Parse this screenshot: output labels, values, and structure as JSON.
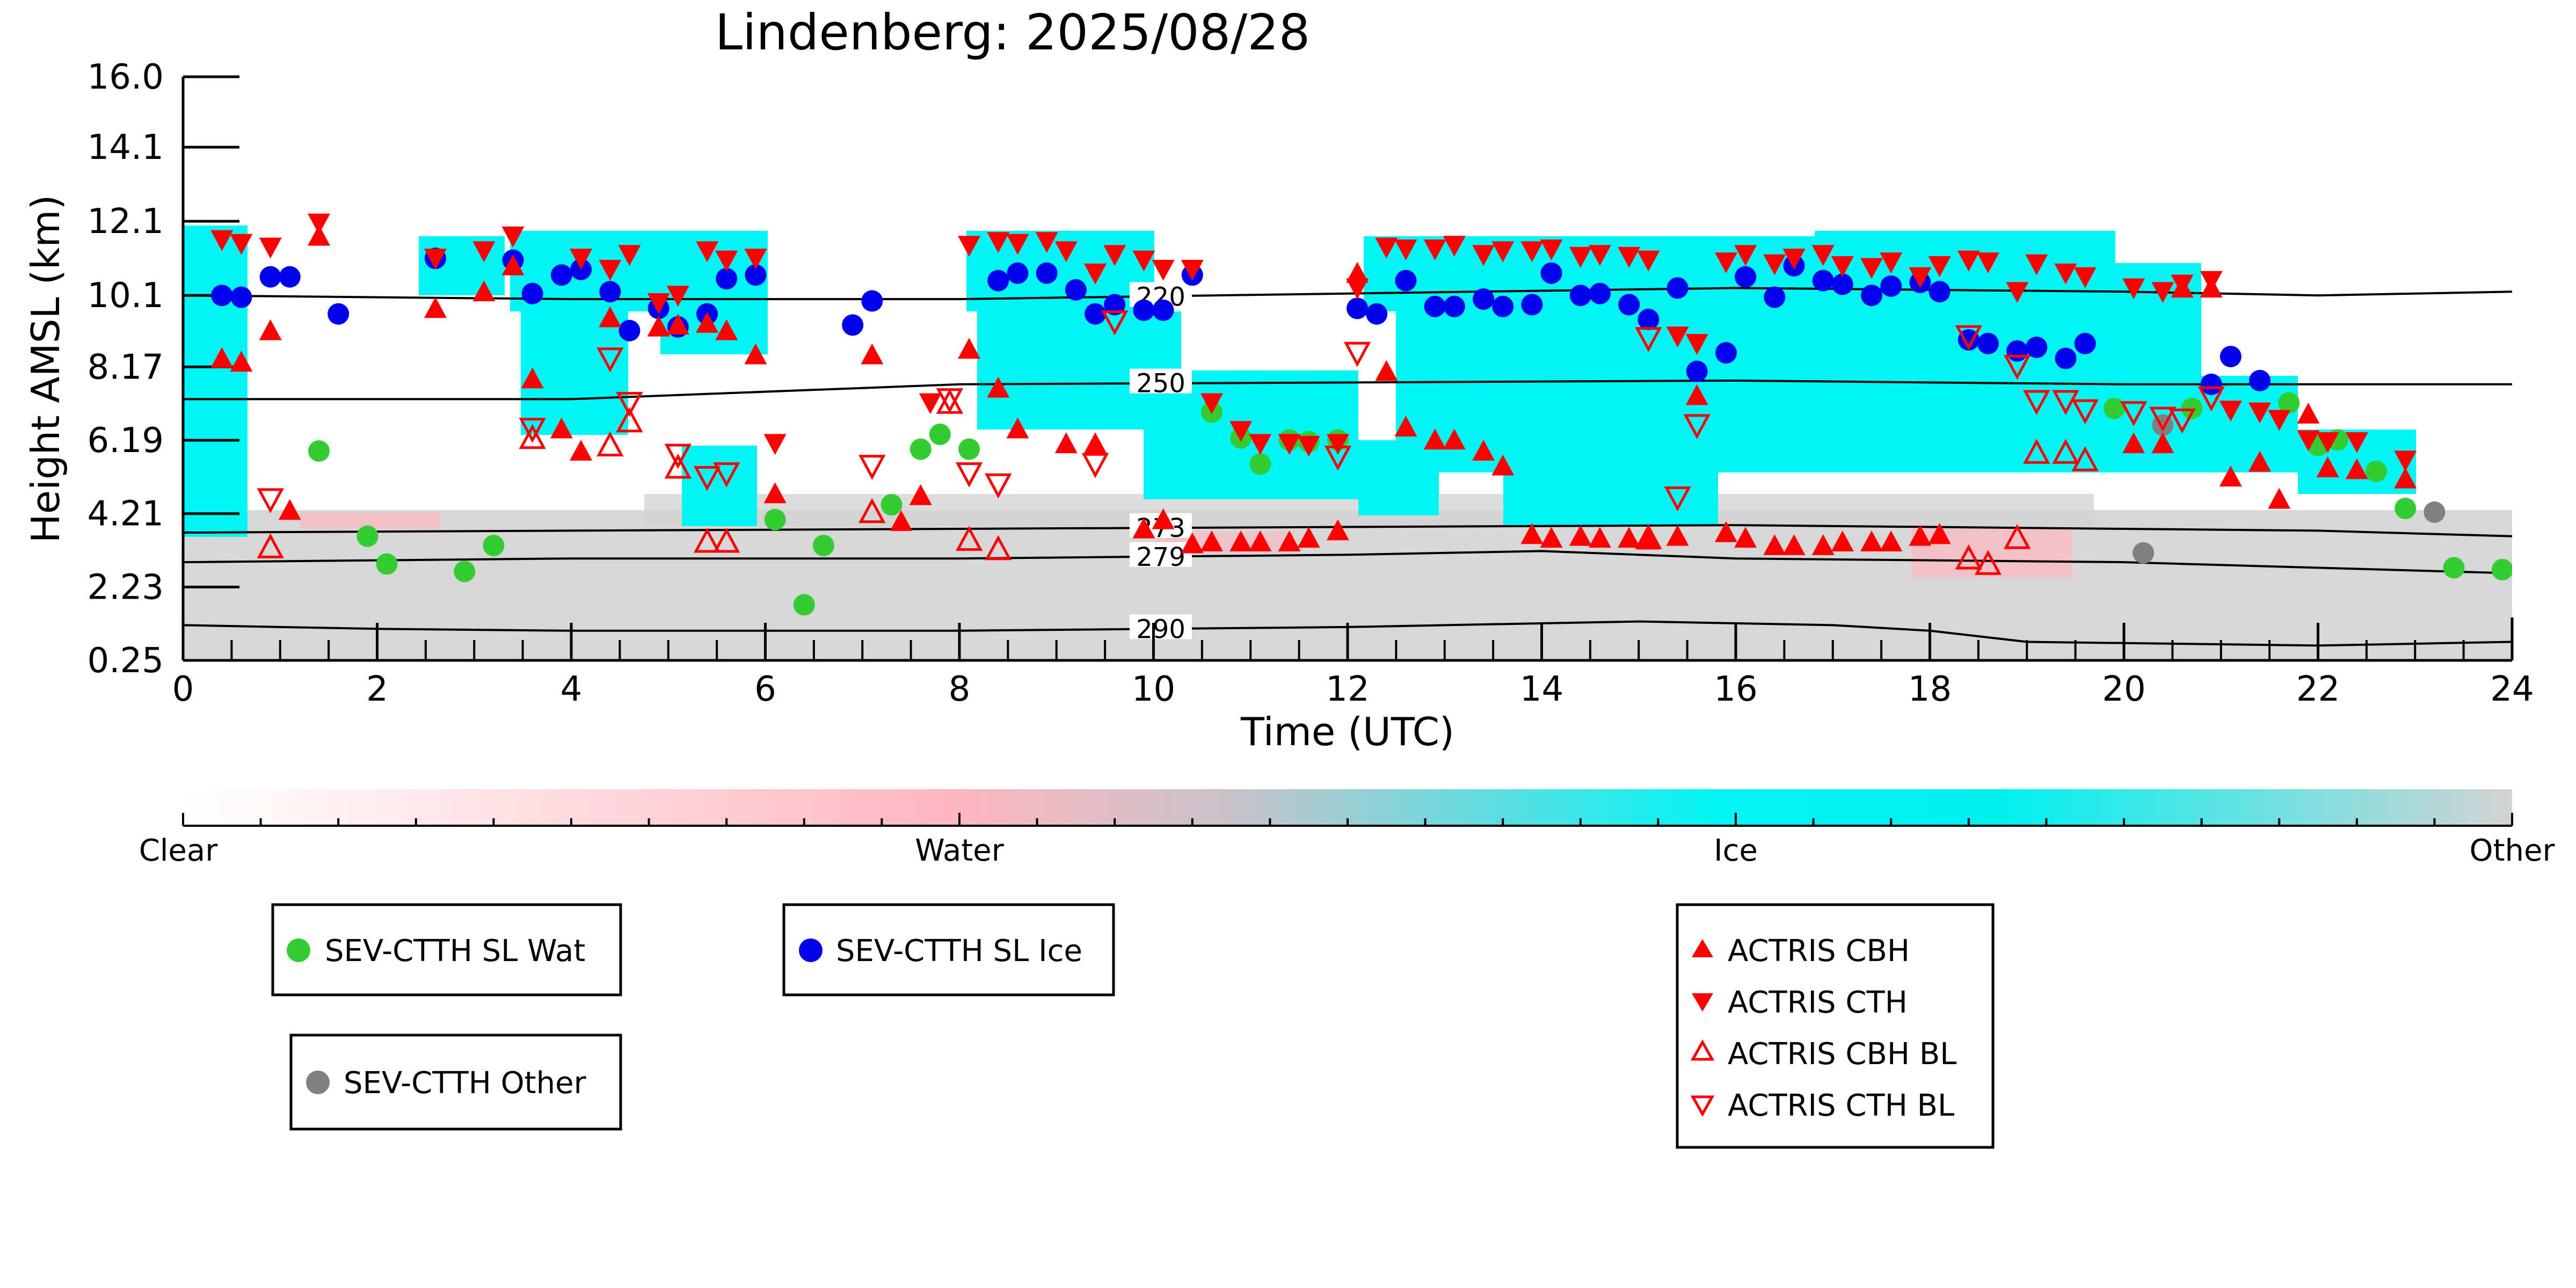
{
  "chart_data": {
    "type": "scatter",
    "title": "Lindenberg: 2025/08/28",
    "xlabel": "Time (UTC)",
    "ylabel": "Height AMSL (km)",
    "xlim": [
      0,
      24
    ],
    "ylim": [
      0.25,
      16.0
    ],
    "xticks": [
      0,
      2,
      4,
      6,
      8,
      10,
      12,
      14,
      16,
      18,
      20,
      22,
      24
    ],
    "yticks": [
      0.25,
      2.23,
      4.21,
      6.19,
      8.17,
      10.1,
      12.1,
      14.1,
      16.0
    ],
    "ytick_labels": [
      "0.25",
      "2.23",
      "4.21",
      "6.19",
      "8.17",
      "10.1",
      "12.1",
      "14.1",
      "16.0"
    ],
    "grid": false,
    "colorbar": {
      "categories": [
        "Clear",
        "Water",
        "Ice",
        "Other"
      ],
      "colors": [
        "#ffffff",
        "#ffb6c1",
        "#00f5f5",
        "#d3d3d3"
      ]
    },
    "contours": [
      {
        "label": "220",
        "x": [
          0,
          4,
          8,
          12,
          16,
          20,
          22,
          24
        ],
        "y": [
          10.1,
          10.0,
          10.0,
          10.15,
          10.3,
          10.2,
          10.1,
          10.2
        ]
      },
      {
        "label": "250",
        "x": [
          0,
          4,
          8,
          12,
          16,
          20,
          24
        ],
        "y": [
          7.3,
          7.3,
          7.7,
          7.75,
          7.8,
          7.7,
          7.7
        ]
      },
      {
        "label": "273",
        "x": [
          0,
          4,
          8,
          12,
          16,
          20,
          22,
          24
        ],
        "y": [
          3.7,
          3.75,
          3.8,
          3.85,
          3.9,
          3.8,
          3.75,
          3.6
        ]
      },
      {
        "label": "279",
        "x": [
          0,
          4,
          8,
          12,
          14,
          16,
          20,
          22,
          24
        ],
        "y": [
          2.9,
          3.0,
          3.0,
          3.1,
          3.2,
          3.0,
          2.9,
          2.75,
          2.6
        ]
      },
      {
        "label": "290",
        "x": [
          0,
          2,
          4,
          8,
          12,
          15,
          17,
          18,
          19,
          22,
          24
        ],
        "y": [
          1.2,
          1.1,
          1.05,
          1.05,
          1.15,
          1.3,
          1.2,
          1.05,
          0.75,
          0.65,
          0.75
        ]
      }
    ],
    "series": [
      {
        "name": "SEV-CTTH SL Wat",
        "marker": "circle",
        "color": "#33cc33",
        "x": [
          1.4,
          1.9,
          2.1,
          2.9,
          3.2,
          6.1,
          6.4,
          6.6,
          7.3,
          7.6,
          7.8,
          8.1,
          10.6,
          10.9,
          11.1,
          11.4,
          11.6,
          11.9,
          19.9,
          20.7,
          21.7,
          22.0,
          22.2,
          22.6,
          22.9,
          23.4,
          23.9
        ],
        "y": [
          5.9,
          3.6,
          2.85,
          2.65,
          3.35,
          4.05,
          1.75,
          3.35,
          4.45,
          5.95,
          6.35,
          5.95,
          6.95,
          6.25,
          5.55,
          6.2,
          6.15,
          6.2,
          7.05,
          7.05,
          7.2,
          6.05,
          6.2,
          5.35,
          4.35,
          2.75,
          2.7
        ]
      },
      {
        "name": "SEV-CTTH SL Ice",
        "marker": "circle",
        "color": "#0000ee",
        "x": [
          0.4,
          0.6,
          0.9,
          1.1,
          1.6,
          2.6,
          3.4,
          3.6,
          3.9,
          4.1,
          4.4,
          4.6,
          4.9,
          5.1,
          5.4,
          5.6,
          5.9,
          6.9,
          7.1,
          8.4,
          8.6,
          8.9,
          9.2,
          9.4,
          9.6,
          9.9,
          10.1,
          10.4,
          12.1,
          12.3,
          12.6,
          12.9,
          13.1,
          13.4,
          13.6,
          13.9,
          14.1,
          14.4,
          14.6,
          14.9,
          15.1,
          15.4,
          15.6,
          15.9,
          16.1,
          16.4,
          16.6,
          16.9,
          17.1,
          17.4,
          17.6,
          17.9,
          18.1,
          18.4,
          18.6,
          18.9,
          19.1,
          19.4,
          19.6,
          20.9,
          21.1,
          21.4
        ],
        "y": [
          10.1,
          10.05,
          10.6,
          10.6,
          9.6,
          11.1,
          11.05,
          10.15,
          10.65,
          10.8,
          10.2,
          9.15,
          9.75,
          9.25,
          9.6,
          10.55,
          10.65,
          9.3,
          9.95,
          10.5,
          10.7,
          10.7,
          10.25,
          9.6,
          9.85,
          9.7,
          9.7,
          10.65,
          9.75,
          9.6,
          10.5,
          9.8,
          9.8,
          10.0,
          9.8,
          9.85,
          10.7,
          10.1,
          10.15,
          9.85,
          9.45,
          10.3,
          8.05,
          8.55,
          10.6,
          10.05,
          10.9,
          10.5,
          10.4,
          10.1,
          10.35,
          10.45,
          10.2,
          8.9,
          8.8,
          8.6,
          8.7,
          8.4,
          8.8,
          7.7,
          8.45,
          7.8
        ]
      },
      {
        "name": "SEV-CTTH Other",
        "marker": "circle",
        "color": "#808080",
        "x": [
          20.2,
          20.4,
          23.2
        ],
        "y": [
          3.15,
          6.6,
          4.25
        ]
      },
      {
        "name": "ACTRIS CBH",
        "marker": "triangle-up",
        "color": "#ff0000",
        "filled": true,
        "x": [
          0.4,
          0.6,
          0.9,
          1.1,
          1.4,
          2.6,
          3.1,
          3.4,
          3.6,
          3.9,
          4.1,
          4.4,
          4.9,
          5.1,
          5.4,
          5.6,
          5.9,
          6.1,
          7.1,
          7.4,
          7.6,
          8.1,
          8.4,
          8.6,
          9.1,
          9.4,
          9.9,
          10.1,
          10.4,
          10.6,
          10.9,
          11.1,
          11.4,
          11.6,
          11.9,
          12.1,
          12.4,
          12.6,
          12.9,
          13.1,
          13.4,
          13.6,
          13.9,
          14.1,
          14.4,
          14.6,
          14.9,
          15.1,
          15.4,
          15.6,
          15.9,
          16.1,
          16.4,
          16.6,
          16.9,
          17.1,
          17.4,
          17.6,
          17.9,
          18.1,
          20.1,
          20.4,
          20.6,
          20.9,
          21.1,
          21.4,
          21.6,
          21.9,
          22.1,
          22.4,
          22.9
        ],
        "y": [
          8.4,
          8.3,
          9.15,
          4.3,
          11.7,
          9.75,
          10.2,
          10.9,
          7.85,
          6.5,
          5.9,
          9.5,
          9.25,
          9.3,
          9.35,
          9.15,
          8.5,
          4.75,
          8.5,
          4.0,
          4.7,
          8.65,
          7.6,
          6.5,
          6.1,
          6.1,
          3.8,
          4.05,
          3.4,
          3.45,
          3.45,
          3.45,
          3.45,
          3.55,
          3.75,
          10.7,
          8.05,
          6.55,
          6.2,
          6.2,
          5.9,
          5.5,
          3.65,
          3.55,
          3.6,
          3.55,
          3.55,
          3.5,
          3.6,
          7.4,
          3.7,
          3.55,
          3.35,
          3.35,
          3.35,
          3.45,
          3.45,
          3.45,
          3.6,
          3.65,
          6.1,
          6.1,
          10.3,
          10.3,
          5.2,
          5.6,
          4.6,
          6.9,
          5.45,
          5.4,
          5.15
        ]
      },
      {
        "name": "ACTRIS CTH",
        "marker": "triangle-down",
        "color": "#ff0000",
        "filled": true,
        "x": [
          0.4,
          0.6,
          0.9,
          1.4,
          2.6,
          3.1,
          3.4,
          4.1,
          4.4,
          4.6,
          4.9,
          5.1,
          5.4,
          5.6,
          5.9,
          6.1,
          7.7,
          8.1,
          8.4,
          8.6,
          8.9,
          9.1,
          9.4,
          9.6,
          9.9,
          10.1,
          10.4,
          10.6,
          10.9,
          11.1,
          11.4,
          11.6,
          11.9,
          12.1,
          12.4,
          12.6,
          12.9,
          13.1,
          13.4,
          13.6,
          13.9,
          14.1,
          14.4,
          14.6,
          14.9,
          15.1,
          15.4,
          15.6,
          15.9,
          16.1,
          16.4,
          16.6,
          16.9,
          17.1,
          17.4,
          17.6,
          17.9,
          18.1,
          18.4,
          18.6,
          18.9,
          19.1,
          19.4,
          19.6,
          20.1,
          20.4,
          20.6,
          20.9,
          21.1,
          21.4,
          21.6,
          21.9,
          22.1,
          22.4,
          22.9
        ],
        "y": [
          11.6,
          11.5,
          11.4,
          12.05,
          11.1,
          11.3,
          11.7,
          11.1,
          10.8,
          11.2,
          9.9,
          10.1,
          11.3,
          11.05,
          11.1,
          6.1,
          7.2,
          11.45,
          11.55,
          11.5,
          11.55,
          11.3,
          10.7,
          11.2,
          11.05,
          10.8,
          10.8,
          7.2,
          6.45,
          6.1,
          6.1,
          6.05,
          6.1,
          10.3,
          11.4,
          11.35,
          11.35,
          11.45,
          11.2,
          11.3,
          11.3,
          11.35,
          11.15,
          11.2,
          11.15,
          11.05,
          9.0,
          8.8,
          11.0,
          11.2,
          10.95,
          11.1,
          11.2,
          10.9,
          10.85,
          11.0,
          10.6,
          10.9,
          11.05,
          11.0,
          10.2,
          10.95,
          10.7,
          10.6,
          10.3,
          10.2,
          10.4,
          10.5,
          7.0,
          6.95,
          6.75,
          6.2,
          6.15,
          6.15,
          5.65
        ]
      },
      {
        "name": "ACTRIS CBH BL",
        "marker": "triangle-up",
        "color": "#ff0000",
        "filled": false,
        "x": [
          0.9,
          3.6,
          4.4,
          4.6,
          5.1,
          5.4,
          5.6,
          7.1,
          7.9,
          8.1,
          8.4,
          15.1,
          18.4,
          18.6,
          18.9,
          19.1,
          19.4,
          19.6
        ],
        "y": [
          3.3,
          6.25,
          6.05,
          6.7,
          5.45,
          3.45,
          3.45,
          4.25,
          7.2,
          3.5,
          3.25,
          3.55,
          3.0,
          2.85,
          3.55,
          5.85,
          5.85,
          5.65
        ]
      },
      {
        "name": "ACTRIS CTH BL",
        "marker": "triangle-down",
        "color": "#ff0000",
        "filled": false,
        "x": [
          0.9,
          3.6,
          4.4,
          4.6,
          5.1,
          5.4,
          5.6,
          7.1,
          7.9,
          8.1,
          8.4,
          9.4,
          9.6,
          11.9,
          12.1,
          15.1,
          15.4,
          15.6,
          18.4,
          18.9,
          19.1,
          19.4,
          19.6,
          20.1,
          20.4,
          20.6,
          20.9
        ],
        "y": [
          4.6,
          6.5,
          8.4,
          7.2,
          5.8,
          5.2,
          5.3,
          5.5,
          7.3,
          5.3,
          5.0,
          5.55,
          9.4,
          5.75,
          8.55,
          8.95,
          4.65,
          6.6,
          9.0,
          8.2,
          7.25,
          7.25,
          7.0,
          6.95,
          6.8,
          6.75,
          7.35
        ]
      }
    ],
    "legends": [
      {
        "entries": [
          "SEV-CTTH SL Wat"
        ]
      },
      {
        "entries": [
          "SEV-CTTH SL Ice"
        ]
      },
      {
        "entries": [
          "SEV-CTTH Other"
        ]
      },
      {
        "entries": [
          "ACTRIS CBH",
          "ACTRIS CTH",
          "ACTRIS CBH BL",
          "ACTRIS CTH BL"
        ]
      }
    ]
  }
}
